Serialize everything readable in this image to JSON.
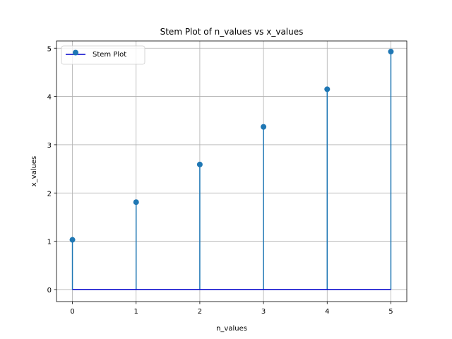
{
  "chart_data": {
    "type": "stem",
    "title": "Stem Plot of n_values vs x_values",
    "xlabel": "n_values",
    "ylabel": "x_values",
    "x": [
      0,
      1,
      2,
      3,
      4,
      5
    ],
    "y": [
      1.03,
      1.81,
      2.59,
      3.37,
      4.15,
      4.93
    ],
    "xlim": [
      -0.25,
      5.25
    ],
    "ylim": [
      -0.25,
      5.15
    ],
    "xticks": [
      "0",
      "1",
      "2",
      "3",
      "4",
      "5"
    ],
    "yticks": [
      "0",
      "1",
      "2",
      "3",
      "4",
      "5"
    ],
    "grid": true,
    "baseline": 0,
    "legend": {
      "label": "Stem Plot",
      "position": "upper-left"
    },
    "colors": {
      "stem": "#1f77b4",
      "marker": "#1f77b4",
      "baseline": "#0000cc",
      "grid": "#b0b0b0"
    }
  }
}
